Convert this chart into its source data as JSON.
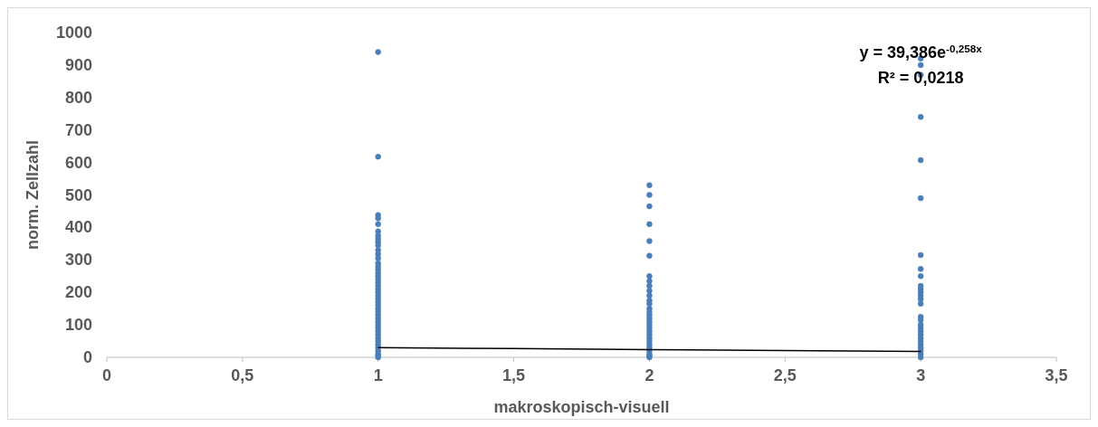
{
  "chart_data": {
    "type": "scatter",
    "xlabel": "makroskopisch-visuell",
    "ylabel": "norm. Zellzahl",
    "xlim": [
      0,
      3.5
    ],
    "xticks": [
      0,
      {
        "value": 0.5,
        "label": "0,5"
      },
      1,
      {
        "value": 1.5,
        "label": "1,5"
      },
      2,
      {
        "value": 2.5,
        "label": "2,5"
      },
      3,
      {
        "value": 3.5,
        "label": "3,5"
      }
    ],
    "ylim": [
      0,
      1000
    ],
    "yticks": [
      0,
      100,
      200,
      300,
      400,
      500,
      600,
      700,
      800,
      900,
      1000
    ],
    "marker": "circle",
    "series": [
      {
        "color": "#4a7ebb",
        "x": [
          1,
          1,
          1,
          1,
          1,
          1,
          1,
          1,
          1,
          1,
          1,
          1,
          1,
          1,
          1,
          1,
          1,
          1,
          1,
          1,
          1,
          1,
          1,
          1,
          1,
          1,
          1,
          1,
          1,
          1,
          1,
          1,
          1,
          1,
          1,
          1,
          1,
          1,
          1,
          1,
          1,
          1,
          1,
          1,
          2,
          2,
          2,
          2,
          2,
          2,
          2,
          2,
          2,
          2,
          2,
          2,
          2,
          2,
          2,
          2,
          2,
          2,
          2,
          2,
          2,
          2,
          2,
          2,
          2,
          2,
          2,
          2,
          2,
          2,
          3,
          3,
          3,
          3,
          3,
          3,
          3,
          3,
          3,
          3,
          3,
          3,
          3,
          3,
          3,
          3,
          3,
          3,
          3,
          3,
          3,
          3,
          3,
          3,
          3,
          3,
          3,
          3
        ],
        "values": [
          940,
          618,
          438,
          428,
          410,
          388,
          375,
          365,
          355,
          345,
          330,
          318,
          305,
          290,
          280,
          270,
          260,
          250,
          240,
          230,
          220,
          210,
          200,
          190,
          180,
          170,
          160,
          150,
          140,
          130,
          120,
          110,
          100,
          90,
          80,
          70,
          60,
          50,
          40,
          30,
          20,
          10,
          5,
          0,
          530,
          500,
          465,
          410,
          358,
          313,
          250,
          235,
          220,
          205,
          190,
          175,
          165,
          150,
          140,
          130,
          120,
          110,
          100,
          90,
          80,
          70,
          60,
          50,
          40,
          30,
          20,
          10,
          5,
          0,
          920,
          900,
          870,
          740,
          607,
          490,
          315,
          272,
          250,
          220,
          210,
          200,
          190,
          180,
          165,
          125,
          115,
          100,
          90,
          80,
          70,
          60,
          50,
          40,
          30,
          20,
          10,
          0
        ]
      },
      {
        "type": "line",
        "color": "#000000",
        "marker": "none",
        "x": [
          1,
          1.5,
          2,
          2.5,
          3
        ],
        "values": [
          30,
          27,
          24,
          21,
          18
        ]
      }
    ],
    "annotations": [
      {
        "text": "y = 39,386e$^{-0,258x}$",
        "x": 3,
        "y": 900
      },
      "R² = 0,0218"
    ]
  }
}
